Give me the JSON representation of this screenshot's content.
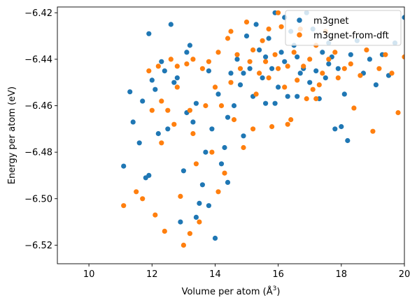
{
  "chart_data": {
    "type": "scatter",
    "xlabel": "Volume per atom (Å",
    "xlabel_sup": "3",
    "xlabel_close": ")",
    "ylabel": "Energy per atom (eV)",
    "xlim": [
      9,
      20
    ],
    "ylim": [
      -6.528,
      -6.4175
    ],
    "xticks": [
      10,
      12,
      14,
      16,
      18,
      20
    ],
    "yticks": [
      -6.52,
      -6.5,
      -6.48,
      -6.46,
      -6.44,
      -6.42
    ],
    "xtick_labels": [
      "10",
      "12",
      "14",
      "16",
      "18",
      "20"
    ],
    "ytick_labels": [
      "−6.52",
      "−6.50",
      "−6.48",
      "−6.46",
      "−6.44",
      "−6.42"
    ],
    "legend_position": "top-right",
    "series": [
      {
        "name": "m3gnet",
        "color": "#1f77b4",
        "points": [
          [
            11.1,
            -6.486
          ],
          [
            11.3,
            -6.454
          ],
          [
            11.4,
            -6.467
          ],
          [
            11.6,
            -6.476
          ],
          [
            11.7,
            -6.458
          ],
          [
            11.8,
            -6.491
          ],
          [
            11.9,
            -6.49
          ],
          [
            11.9,
            -6.429
          ],
          [
            12.0,
            -6.449
          ],
          [
            12.1,
            -6.453
          ],
          [
            12.2,
            -6.472
          ],
          [
            12.3,
            -6.441
          ],
          [
            12.4,
            -6.445
          ],
          [
            12.5,
            -6.47
          ],
          [
            12.6,
            -6.425
          ],
          [
            12.7,
            -6.45
          ],
          [
            12.8,
            -6.448
          ],
          [
            12.9,
            -6.51
          ],
          [
            13.0,
            -6.488
          ],
          [
            13.1,
            -6.463
          ],
          [
            13.1,
            -6.437
          ],
          [
            13.2,
            -6.434
          ],
          [
            13.3,
            -6.467
          ],
          [
            13.4,
            -6.459
          ],
          [
            13.4,
            -6.508
          ],
          [
            13.5,
            -6.502
          ],
          [
            13.6,
            -6.494
          ],
          [
            13.7,
            -6.48
          ],
          [
            13.8,
            -6.445
          ],
          [
            13.9,
            -6.47
          ],
          [
            14.0,
            -6.517
          ],
          [
            14.1,
            -6.455
          ],
          [
            14.2,
            -6.485
          ],
          [
            14.3,
            -6.478
          ],
          [
            14.4,
            -6.493
          ],
          [
            14.5,
            -6.446
          ],
          [
            14.6,
            -6.46
          ],
          [
            14.7,
            -6.44
          ],
          [
            14.8,
            -6.451
          ],
          [
            14.9,
            -6.473
          ],
          [
            15.0,
            -6.43
          ],
          [
            15.1,
            -6.444
          ],
          [
            15.2,
            -6.456
          ],
          [
            15.3,
            -6.425
          ],
          [
            15.4,
            -6.436
          ],
          [
            15.5,
            -6.448
          ],
          [
            15.6,
            -6.439
          ],
          [
            15.7,
            -6.431
          ],
          [
            15.8,
            -6.444
          ],
          [
            15.9,
            -6.42
          ],
          [
            16.0,
            -6.452
          ],
          [
            16.1,
            -6.437
          ],
          [
            16.2,
            -6.441
          ],
          [
            16.3,
            -6.456
          ],
          [
            16.4,
            -6.428
          ],
          [
            16.5,
            -6.434
          ],
          [
            16.6,
            -6.439
          ],
          [
            16.7,
            -6.446
          ],
          [
            16.8,
            -6.444
          ],
          [
            16.9,
            -6.42
          ],
          [
            17.0,
            -6.45
          ],
          [
            17.1,
            -6.427
          ],
          [
            17.2,
            -6.445
          ],
          [
            17.3,
            -6.457
          ],
          [
            17.4,
            -6.437
          ],
          [
            17.5,
            -6.448
          ],
          [
            17.6,
            -6.433
          ],
          [
            17.7,
            -6.439
          ],
          [
            17.8,
            -6.47
          ],
          [
            17.9,
            -6.444
          ],
          [
            18.0,
            -6.469
          ],
          [
            18.1,
            -6.455
          ],
          [
            18.2,
            -6.475
          ],
          [
            18.3,
            -6.438
          ],
          [
            18.5,
            -6.432
          ],
          [
            18.7,
            -6.446
          ],
          [
            18.9,
            -6.44
          ],
          [
            19.1,
            -6.451
          ],
          [
            19.3,
            -6.438
          ],
          [
            19.5,
            -6.447
          ],
          [
            19.7,
            -6.433
          ],
          [
            20.0,
            -6.422
          ],
          [
            14.4,
            -6.465
          ],
          [
            14.9,
            -6.446
          ],
          [
            15.6,
            -6.459
          ],
          [
            16.6,
            -6.456
          ],
          [
            13.8,
            -6.503
          ],
          [
            15.9,
            -6.459
          ],
          [
            17.6,
            -6.442
          ],
          [
            16.2,
            -6.422
          ]
        ]
      },
      {
        "name": "m3gnet-from-dft",
        "color": "#ff7f0e",
        "points": [
          [
            11.1,
            -6.503
          ],
          [
            11.5,
            -6.497
          ],
          [
            11.7,
            -6.5
          ],
          [
            11.9,
            -6.445
          ],
          [
            12.0,
            -6.462
          ],
          [
            12.1,
            -6.507
          ],
          [
            12.2,
            -6.443
          ],
          [
            12.3,
            -6.458
          ],
          [
            12.3,
            -6.476
          ],
          [
            12.4,
            -6.514
          ],
          [
            12.5,
            -6.462
          ],
          [
            12.6,
            -6.44
          ],
          [
            12.7,
            -6.468
          ],
          [
            12.8,
            -6.443
          ],
          [
            12.9,
            -6.499
          ],
          [
            13.0,
            -6.52
          ],
          [
            13.1,
            -6.442
          ],
          [
            13.2,
            -6.462
          ],
          [
            13.3,
            -6.44
          ],
          [
            13.4,
            -6.485
          ],
          [
            13.5,
            -6.51
          ],
          [
            13.6,
            -6.444
          ],
          [
            13.7,
            -6.46
          ],
          [
            13.8,
            -6.441
          ],
          [
            13.9,
            -6.48
          ],
          [
            14.0,
            -6.452
          ],
          [
            14.1,
            -6.437
          ],
          [
            14.2,
            -6.46
          ],
          [
            14.3,
            -6.489
          ],
          [
            14.4,
            -6.431
          ],
          [
            14.5,
            -6.45
          ],
          [
            14.6,
            -6.466
          ],
          [
            14.7,
            -6.438
          ],
          [
            14.8,
            -6.444
          ],
          [
            14.9,
            -6.478
          ],
          [
            15.0,
            -6.424
          ],
          [
            15.1,
            -6.441
          ],
          [
            15.2,
            -6.436
          ],
          [
            15.3,
            -6.455
          ],
          [
            15.4,
            -6.446
          ],
          [
            15.5,
            -6.432
          ],
          [
            15.6,
            -6.441
          ],
          [
            15.7,
            -6.448
          ],
          [
            15.8,
            -6.469
          ],
          [
            15.9,
            -6.438
          ],
          [
            16.0,
            -6.444
          ],
          [
            16.1,
            -6.426
          ],
          [
            16.2,
            -6.452
          ],
          [
            16.3,
            -6.443
          ],
          [
            16.4,
            -6.466
          ],
          [
            16.5,
            -6.437
          ],
          [
            16.6,
            -6.449
          ],
          [
            16.7,
            -6.427
          ],
          [
            16.8,
            -6.443
          ],
          [
            16.9,
            -6.457
          ],
          [
            17.0,
            -6.44
          ],
          [
            17.1,
            -6.453
          ],
          [
            17.2,
            -6.434
          ],
          [
            17.3,
            -6.451
          ],
          [
            17.4,
            -6.446
          ],
          [
            17.5,
            -6.428
          ],
          [
            17.6,
            -6.44
          ],
          [
            17.8,
            -6.437
          ],
          [
            17.9,
            -6.448
          ],
          [
            18.1,
            -6.444
          ],
          [
            18.3,
            -6.442
          ],
          [
            18.4,
            -6.461
          ],
          [
            18.6,
            -6.447
          ],
          [
            18.8,
            -6.436
          ],
          [
            19.0,
            -6.471
          ],
          [
            19.2,
            -6.444
          ],
          [
            19.4,
            -6.438
          ],
          [
            19.6,
            -6.446
          ],
          [
            19.8,
            -6.463
          ],
          [
            20.0,
            -6.439
          ],
          [
            13.2,
            -6.515
          ],
          [
            14.1,
            -6.497
          ],
          [
            15.2,
            -6.47
          ],
          [
            16.3,
            -6.468
          ],
          [
            12.8,
            -6.452
          ],
          [
            14.5,
            -6.428
          ],
          [
            15.7,
            -6.427
          ],
          [
            16.0,
            -6.42
          ],
          [
            13.3,
            -6.472
          ],
          [
            17.2,
            -6.457
          ]
        ]
      }
    ]
  }
}
